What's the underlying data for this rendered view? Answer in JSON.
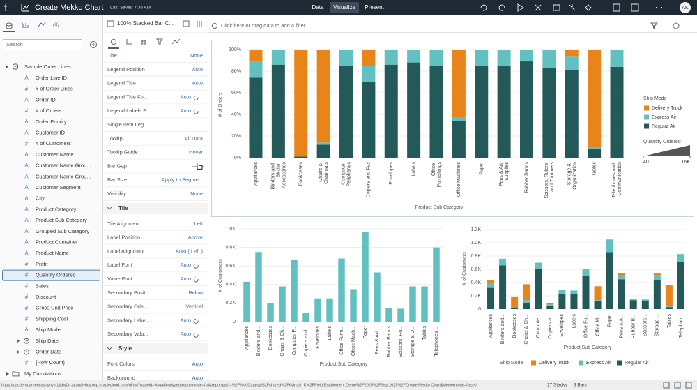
{
  "header": {
    "title": "Create Mekko Chart",
    "saved": "Last Saved 7:36 AM",
    "tabs": [
      "Data",
      "Visualize",
      "Present"
    ],
    "active_tab": 1,
    "user": "AK"
  },
  "data_panel": {
    "calc_tab": "(x)",
    "search_placeholder": "Search",
    "root": "Sample Order Lines",
    "items": [
      {
        "label": "Order Line ID",
        "icon": "A"
      },
      {
        "label": "# of Order Lines",
        "icon": "#"
      },
      {
        "label": "Order ID",
        "icon": "A"
      },
      {
        "label": "# of Orders",
        "icon": "#"
      },
      {
        "label": "Order Priority",
        "icon": "A"
      },
      {
        "label": "Customer ID",
        "icon": "A"
      },
      {
        "label": "# of Customers",
        "icon": "#"
      },
      {
        "label": "Customer Name",
        "icon": "A"
      },
      {
        "label": "Customer Name Grou...",
        "icon": "A"
      },
      {
        "label": "Customer Name Grou...",
        "icon": "A"
      },
      {
        "label": "Customer Segment",
        "icon": "A"
      },
      {
        "label": "City",
        "icon": "A"
      },
      {
        "label": "Product Category",
        "icon": "A"
      },
      {
        "label": "Product Sub Category",
        "icon": "A"
      },
      {
        "label": "Grouped Sub Category",
        "icon": "A"
      },
      {
        "label": "Product Container",
        "icon": "A"
      },
      {
        "label": "Product Name",
        "icon": "A"
      },
      {
        "label": "Profit",
        "icon": "#"
      },
      {
        "label": "Quantity Ordered",
        "icon": "#",
        "selected": true
      },
      {
        "label": "Sales",
        "icon": "#"
      },
      {
        "label": "Discount",
        "icon": "#"
      },
      {
        "label": "Gross Unit Price",
        "icon": "#"
      },
      {
        "label": "Shipping Cost",
        "icon": "#"
      },
      {
        "label": "Ship Mode",
        "icon": "A"
      },
      {
        "label": "Ship Date",
        "icon": "date",
        "expandable": true
      },
      {
        "label": "Order Date",
        "icon": "date",
        "expandable": true
      },
      {
        "label": "{Row Count}",
        "icon": "#"
      },
      {
        "label": "My Calculations",
        "icon": "folder",
        "expandable": true
      }
    ]
  },
  "properties_panel": {
    "title": "100% Stacked Bar C...",
    "rows": [
      {
        "label": "Title",
        "value": "None"
      },
      {
        "label": "Legend Position",
        "value": "Auto"
      },
      {
        "label": "Legend Title",
        "value": "Auto"
      },
      {
        "label": "Legend Title Fo...",
        "value": "Auto",
        "reset": true
      },
      {
        "label": "Legend Labels F...",
        "value": "Auto",
        "reset": true
      },
      {
        "label": "Single Item Leg..."
      },
      {
        "label": "Tooltip",
        "value": "All Data"
      },
      {
        "label": "Tooltip Guide",
        "value": "Hover"
      },
      {
        "label": "Bar Gap",
        "slider": true
      },
      {
        "label": "Bar Size",
        "value": "Apply to Segme..."
      },
      {
        "label": "Visibility",
        "value": "None"
      },
      {
        "section": "Tile"
      },
      {
        "label": "Tile Alignment",
        "value": "Left"
      },
      {
        "label": "Label Position",
        "value": "Above"
      },
      {
        "label": "Label Alignment",
        "value": "Auto ( Left )"
      },
      {
        "label": "Label Font",
        "value": "Auto",
        "reset": true
      },
      {
        "label": "Value Font",
        "value": "Auto",
        "reset": true
      },
      {
        "label": "Secondary Positi...",
        "value": "Below"
      },
      {
        "label": "Secondary Orie...",
        "value": "Vertical"
      },
      {
        "label": "Secondary Label...",
        "value": "Auto",
        "reset": true
      },
      {
        "label": "Secondary Valu...",
        "value": "Auto",
        "reset": true
      },
      {
        "section": "Style"
      },
      {
        "label": "Font Colors",
        "value": "Auto"
      },
      {
        "label": "Background",
        "value": "Auto"
      }
    ]
  },
  "filter_bar": {
    "placeholder": "Click here or drag data to add a filter"
  },
  "status_bar": {
    "url": "https://oacdemoamericas-idnym1tkby0n-ia.analytics.ocp.oraclecloud.com/ui/dv/?pageid=visualAnalyzer&reportmode=full&reportpath=%2F%40Catalog%2Fshared%2FAvinash K%2FField Enablement Demo%2F2025%2FSep 2025%2FCreate Mekko Chart&viewermode=false#",
    "summary": [
      "17 Stacks",
      "3 Bars"
    ]
  },
  "chart_data": [
    {
      "type": "bar",
      "stacked": true,
      "y_label": "# of Orders",
      "x_label": "Product Sub Category",
      "legend_title": "Ship Mode",
      "legend": "right",
      "grid": true,
      "categories": [
        "Appliances",
        "Binders and Binder Accessories",
        "Bookcases",
        "Chairs & Chairmats",
        "Computer Peripherals",
        "Copiers and Fax",
        "Envelopes",
        "Labels",
        "Office Furnishings",
        "Office Machines",
        "Paper",
        "Pens & Art Supplies",
        "Rubber Bands",
        "Scissors, Rulers and Trimmers",
        "Storage & Organization",
        "Tables",
        "Telephones and Communication"
      ],
      "series": [
        {
          "name": "Delivery Truck",
          "color": "#e8841a",
          "values": [
            11,
            0,
            99,
            86,
            0,
            15,
            0,
            0,
            0,
            62,
            0,
            0,
            0,
            0,
            6,
            90,
            0
          ]
        },
        {
          "name": "Express Air",
          "color": "#62c1c0",
          "values": [
            15,
            14,
            0,
            2,
            15,
            15,
            14,
            12,
            15,
            4,
            15,
            15,
            11,
            17,
            13,
            2,
            16
          ]
        },
        {
          "name": "Regular Air",
          "color": "#24595a",
          "values": [
            74,
            86,
            1,
            12,
            85,
            70,
            86,
            88,
            85,
            34,
            85,
            85,
            89,
            83,
            81,
            8,
            84
          ]
        }
      ],
      "ylim": [
        0,
        100
      ],
      "yticks": [
        {
          "value": 0,
          "label": "0%"
        },
        {
          "value": 20,
          "label": "20%"
        },
        {
          "value": 40,
          "label": "40%"
        },
        {
          "value": 60,
          "label": "60%"
        },
        {
          "value": 80,
          "label": "80%"
        },
        {
          "value": 100,
          "label": "100%"
        }
      ],
      "size_legend": {
        "title": "Quantity Ordered",
        "ticks": [
          40,
          {
            "value": 16000,
            "label": "16K"
          }
        ]
      }
    },
    {
      "type": "bar",
      "y_label": "# of Customers",
      "x_label": "Product Sub Category",
      "grid": true,
      "color": "#62c1c0",
      "categories": [
        "Appliances",
        "Binders and...",
        "Bookcases",
        "Chairs & Ch...",
        "Computer P...",
        "Copiers and...",
        "Envelopes",
        "Labels",
        "Office Furni...",
        "Office Mach...",
        "Paper",
        "Pens & Art ...",
        "Rubber Bands",
        "Scissors, Ru...",
        "Storage & O...",
        "Tables",
        "Telephones ..."
      ],
      "values": [
        430,
        750,
        195,
        380,
        670,
        90,
        250,
        250,
        680,
        350,
        970,
        530,
        150,
        140,
        380,
        380,
        800
      ],
      "ylim": [
        0,
        1000
      ],
      "yticks": [
        0,
        {
          "value": 200,
          "label": "0.2K"
        },
        {
          "value": 400,
          "label": "0.4K"
        },
        {
          "value": 600,
          "label": "0.6K"
        },
        {
          "value": 800,
          "label": "0.8K"
        },
        {
          "value": 1000,
          "label": "1.0K"
        }
      ]
    },
    {
      "type": "bar",
      "stacked": true,
      "y_label": "# of Customers",
      "x_label": "Product Sub Category",
      "legend_title": "Ship Mode",
      "legend": "bottom",
      "grid": true,
      "categories": [
        "Appliances",
        "Binders and...",
        "Bookcases",
        "Chairs & Ch...",
        "Compute...",
        "Copiers a...",
        "Envelopes",
        "Labels",
        "Office Fu...",
        "Office M...",
        "Paper",
        "Pens & A...",
        "Rubber B...",
        "Scissors...",
        "Storage ...",
        "Tables",
        "Telephon..."
      ],
      "series": [
        {
          "name": "Delivery Truck",
          "color": "#e8841a",
          "values": [
            60,
            0,
            170,
            240,
            0,
            20,
            0,
            0,
            0,
            210,
            0,
            30,
            0,
            0,
            30,
            320,
            0
          ]
        },
        {
          "name": "Express Air",
          "color": "#62c1c0",
          "values": [
            60,
            100,
            0,
            40,
            100,
            20,
            60,
            50,
            100,
            10,
            190,
            60,
            20,
            20,
            75,
            10,
            115
          ]
        },
        {
          "name": "Regular Air",
          "color": "#24595a",
          "values": [
            320,
            660,
            20,
            95,
            600,
            50,
            230,
            230,
            500,
            125,
            860,
            450,
            135,
            125,
            440,
            30,
            715
          ]
        }
      ],
      "ylim": [
        0,
        1200
      ],
      "yticks": [
        0,
        {
          "value": 200,
          "label": "0.2K"
        },
        {
          "value": 400,
          "label": "0.4K"
        },
        {
          "value": 600,
          "label": "0.6K"
        },
        {
          "value": 800,
          "label": "0.8K"
        },
        {
          "value": 1000,
          "label": "1.0K"
        },
        {
          "value": 1200,
          "label": "1.2K"
        }
      ]
    }
  ]
}
